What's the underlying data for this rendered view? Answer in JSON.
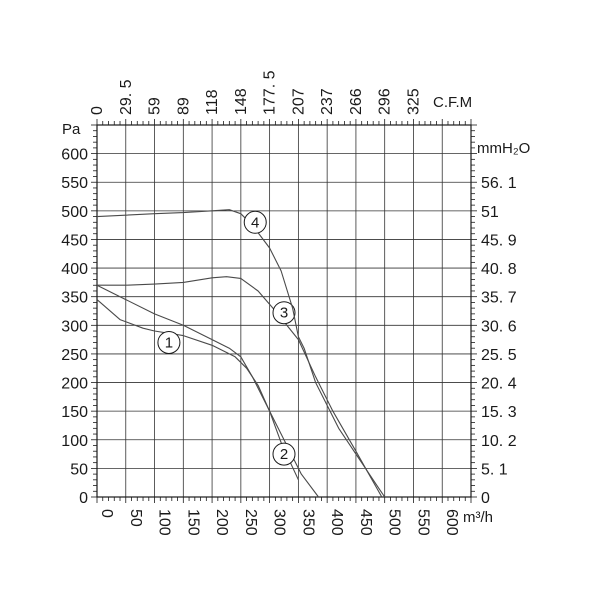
{
  "chart_data": {
    "type": "line",
    "title": "",
    "xlabel": "m³/h",
    "ylabel": "Pa",
    "x2label": "C.F.M",
    "y2label": "mmH₂O",
    "xlim": [
      0,
      650
    ],
    "ylim": [
      0,
      650
    ],
    "grid": true,
    "x_ticks": [
      "0",
      "50",
      "100",
      "150",
      "200",
      "250",
      "300",
      "350",
      "400",
      "450",
      "500",
      "550",
      "600"
    ],
    "x_tick_values": [
      0,
      50,
      100,
      150,
      200,
      250,
      300,
      350,
      400,
      450,
      500,
      550,
      600
    ],
    "y_ticks": [
      "0",
      "50",
      "100",
      "150",
      "200",
      "250",
      "300",
      "350",
      "400",
      "450",
      "500",
      "550",
      "600"
    ],
    "y_tick_values": [
      0,
      50,
      100,
      150,
      200,
      250,
      300,
      350,
      400,
      450,
      500,
      550,
      600
    ],
    "top_ticks": [
      "0",
      "29. 5",
      "59",
      "89",
      "118",
      "148",
      "177. 5",
      "207",
      "237",
      "266",
      "296",
      "325"
    ],
    "top_tick_values": [
      0,
      50,
      100,
      150,
      200,
      250,
      300,
      350,
      400,
      450,
      500,
      550
    ],
    "right_ticks": [
      "0",
      "5. 1",
      "10. 2",
      "15. 3",
      "20. 4",
      "25. 5",
      "30. 6",
      "35. 7",
      "40. 8",
      "45. 9",
      "51",
      "56. 1"
    ],
    "right_tick_values": [
      0,
      50,
      100,
      150,
      200,
      250,
      300,
      350,
      400,
      450,
      500,
      550
    ],
    "series": [
      {
        "label": "1",
        "label_at": [
          125,
          270
        ],
        "x": [
          0,
          40,
          80,
          100,
          150,
          200,
          240,
          260,
          280,
          300,
          320,
          350
        ],
        "y": [
          345,
          310,
          295,
          290,
          282,
          265,
          245,
          225,
          195,
          150,
          95,
          30
        ]
      },
      {
        "label": "2",
        "label_at": [
          325,
          75
        ],
        "x": [
          0,
          50,
          100,
          150,
          200,
          230,
          250,
          270,
          290,
          310,
          330,
          355,
          385
        ],
        "y": [
          370,
          345,
          320,
          300,
          275,
          260,
          245,
          210,
          170,
          130,
          90,
          40,
          0
        ]
      },
      {
        "label": "3",
        "label_at": [
          325,
          322
        ],
        "x": [
          0,
          50,
          100,
          150,
          200,
          225,
          250,
          280,
          310,
          350,
          380,
          410,
          450,
          495
        ],
        "y": [
          370,
          370,
          372,
          375,
          383,
          385,
          382,
          360,
          325,
          275,
          210,
          150,
          80,
          0
        ]
      },
      {
        "label": "4",
        "label_at": [
          275,
          480
        ],
        "x": [
          0,
          100,
          150,
          200,
          230,
          250,
          270,
          300,
          320,
          340,
          350,
          360,
          380,
          420,
          460,
          490,
          500
        ],
        "y": [
          490,
          495,
          497,
          500,
          502,
          495,
          475,
          435,
          395,
          330,
          280,
          260,
          200,
          120,
          60,
          15,
          0
        ]
      }
    ]
  }
}
